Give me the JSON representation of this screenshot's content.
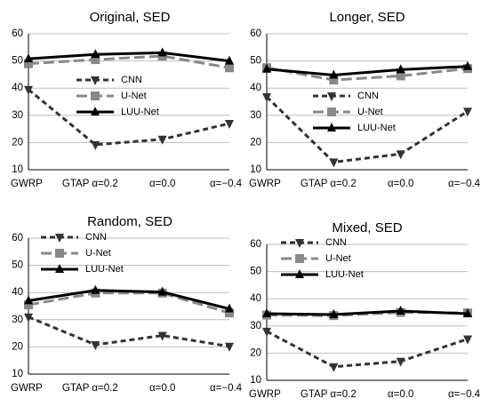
{
  "chart_data": [
    {
      "type": "line",
      "title": "Original, SED",
      "categories": [
        "GWRP",
        "GTAP α=0.2",
        "α=0.0",
        "α=−0.4"
      ],
      "ylim": [
        10,
        60
      ],
      "yticks": [
        10,
        20,
        30,
        40,
        50,
        60
      ],
      "grid": "horizontal",
      "legend": "center",
      "series": [
        {
          "name": "CNN",
          "values": [
            39.5,
            19.2,
            21.2,
            27.0
          ],
          "color": "#333333",
          "dash": "dashed",
          "marker": "triangle-down"
        },
        {
          "name": "U-Net",
          "values": [
            49.0,
            50.5,
            51.8,
            47.5
          ],
          "color": "#888888",
          "dash": "long-dash",
          "marker": "square"
        },
        {
          "name": "LUU-Net",
          "values": [
            50.8,
            52.4,
            53.0,
            50.0
          ],
          "color": "#000000",
          "dash": "solid",
          "marker": "triangle-up"
        }
      ]
    },
    {
      "type": "line",
      "title": "Longer, SED",
      "categories": [
        "GWRP",
        "GTAP α=0.2",
        "α=0.0",
        "α=−0.4"
      ],
      "ylim": [
        10,
        60
      ],
      "yticks": [
        10,
        20,
        30,
        40,
        50,
        60
      ],
      "grid": "horizontal",
      "legend": "center",
      "series": [
        {
          "name": "CNN",
          "values": [
            36.8,
            12.8,
            15.8,
            31.5
          ],
          "color": "#333333",
          "dash": "dashed",
          "marker": "triangle-down"
        },
        {
          "name": "U-Net",
          "values": [
            47.5,
            43.0,
            44.5,
            47.2
          ],
          "color": "#888888",
          "dash": "long-dash",
          "marker": "square"
        },
        {
          "name": "LUU-Net",
          "values": [
            47.0,
            44.8,
            46.8,
            48.0
          ],
          "color": "#000000",
          "dash": "solid",
          "marker": "triangle-up"
        }
      ]
    },
    {
      "type": "line",
      "title": "Random, SED",
      "categories": [
        "GWRP",
        "GTAP α=0.2",
        "α=0.0",
        "α=−0.4"
      ],
      "ylim": [
        10,
        60
      ],
      "yticks": [
        10,
        20,
        30,
        40,
        50,
        60
      ],
      "grid": "horizontal",
      "legend": "top-left",
      "series": [
        {
          "name": "CNN",
          "values": [
            31.0,
            20.8,
            24.2,
            20.2
          ],
          "color": "#333333",
          "dash": "dashed",
          "marker": "triangle-down"
        },
        {
          "name": "U-Net",
          "values": [
            35.5,
            39.8,
            39.8,
            32.5
          ],
          "color": "#888888",
          "dash": "long-dash",
          "marker": "square"
        },
        {
          "name": "LUU-Net",
          "values": [
            37.0,
            40.8,
            40.2,
            34.0
          ],
          "color": "#000000",
          "dash": "solid",
          "marker": "triangle-up"
        }
      ]
    },
    {
      "type": "line",
      "title": "Mixed, SED",
      "categories": [
        "GWRP",
        "GTAP α=0.2",
        "α=0.0",
        "α=−0.4"
      ],
      "ylim": [
        10,
        60
      ],
      "yticks": [
        10,
        20,
        30,
        40,
        50,
        60
      ],
      "grid": "horizontal",
      "legend": "top-left",
      "series": [
        {
          "name": "CNN",
          "values": [
            28.0,
            15.0,
            17.0,
            25.2
          ],
          "color": "#333333",
          "dash": "dashed",
          "marker": "triangle-down"
        },
        {
          "name": "U-Net",
          "values": [
            34.0,
            33.8,
            35.0,
            34.8
          ],
          "color": "#888888",
          "dash": "long-dash",
          "marker": "square"
        },
        {
          "name": "LUU-Net",
          "values": [
            34.5,
            34.2,
            35.5,
            34.5
          ],
          "color": "#000000",
          "dash": "solid",
          "marker": "triangle-up"
        }
      ]
    }
  ]
}
